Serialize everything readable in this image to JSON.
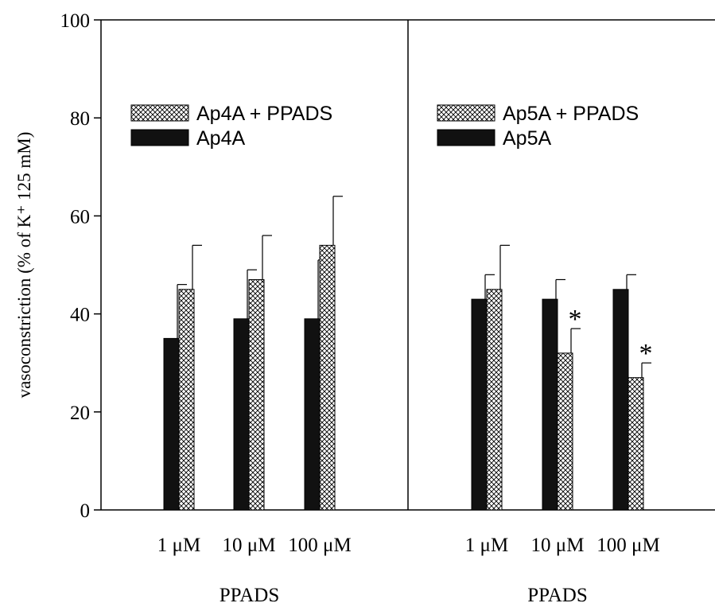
{
  "chart_data": {
    "type": "bar",
    "ylabel": "vasoconstriction (% of K⁺ 125 mM)",
    "ylim": [
      0,
      100
    ],
    "yticks": [
      0,
      20,
      40,
      60,
      80,
      100
    ],
    "ytick_labels": [
      "0",
      "20",
      "40",
      "60",
      "80",
      "100"
    ],
    "colors": {
      "solid": "#111111",
      "hatched": "#ffffff",
      "axis": "#000000"
    },
    "panels": [
      {
        "xlabel": "PPADS",
        "categories": [
          "1 μM",
          "10 μM",
          "100 μM"
        ],
        "legend_placement": "top-left",
        "series": [
          {
            "name": "Ap4A",
            "style": "solid",
            "values": [
              35,
              39,
              39
            ],
            "errors": [
              11,
              10,
              12
            ],
            "significant": [
              false,
              false,
              false
            ]
          },
          {
            "name": "Ap4A + PPADS",
            "style": "hatched",
            "values": [
              45,
              47,
              54
            ],
            "errors": [
              9,
              9,
              10
            ],
            "significant": [
              false,
              false,
              false
            ]
          }
        ]
      },
      {
        "xlabel": "PPADS",
        "categories": [
          "1 μM",
          "10 μM",
          "100 μM"
        ],
        "legend_placement": "top-left",
        "series": [
          {
            "name": "Ap5A",
            "style": "solid",
            "values": [
              43,
              43,
              45
            ],
            "errors": [
              5,
              4,
              3
            ],
            "significant": [
              false,
              false,
              false
            ]
          },
          {
            "name": "Ap5A + PPADS",
            "style": "hatched",
            "values": [
              45,
              32,
              27
            ],
            "errors": [
              9,
              5,
              3
            ],
            "significant": [
              false,
              true,
              true
            ]
          }
        ]
      }
    ],
    "significance_marker": "*"
  }
}
